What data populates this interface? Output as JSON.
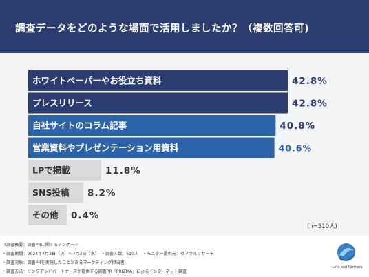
{
  "header": {
    "title": "調査データをどのような場面で活用しましたか？（複数回答可)"
  },
  "chart_data": {
    "type": "bar",
    "orientation": "horizontal",
    "categories": [
      "ホワイトペーパーやお役立ち資料",
      "プレスリリース",
      "自社サイトのコラム記事",
      "営業資料やプレゼンテーション用資料",
      "LPで掲載",
      "SNS投稿",
      "その他"
    ],
    "values": [
      42.8,
      42.8,
      40.8,
      40.6,
      11.8,
      8.2,
      0.4
    ],
    "value_labels": [
      "42.8%",
      "42.8%",
      "40.8%",
      "40.6%",
      "11.8%",
      "8.2%",
      "0.4%"
    ],
    "colors": [
      "#2b3d70",
      "#2b3d70",
      "#2d63a8",
      "#2d63a8",
      "#d9d9d9",
      "#d9d9d9",
      "#d9d9d9"
    ],
    "value_colors": [
      "#2b3d70",
      "#2b3d70",
      "#2b3d70",
      "#2d63a8",
      "#333333",
      "#333333",
      "#333333"
    ],
    "label_colors": [
      "#ffffff",
      "#ffffff",
      "#ffffff",
      "#ffffff",
      "#333333",
      "#333333",
      "#333333"
    ],
    "xlim": [
      0,
      45
    ],
    "note": "(n=510人)"
  },
  "footer": {
    "lines": [
      "《調査概要：調査PRに関するアンケート",
      "・調査期間：2024年7月2日（火）〜7月3日（水）　・調査人数：510人　・モニター提供元：ゼネラルリサーチ",
      "・調査対象：調査PRを実施したことがあるマーケティング担当者",
      "・調査方法：リンクアンドパートナーズが提供する調査PR「PRIZMA」によるインターネット調査"
    ],
    "logo_text": "Link and Partners"
  }
}
